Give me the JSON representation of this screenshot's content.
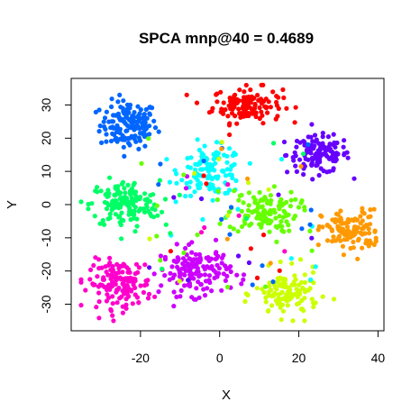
{
  "chart_data": {
    "type": "scatter",
    "title": "SPCA mnp@40 = 0.4689",
    "xlabel": "X",
    "ylabel": "Y",
    "xlim": [
      -37.5,
      41.5
    ],
    "ylim": [
      -38,
      38
    ],
    "xticks": [
      -20,
      0,
      20,
      40
    ],
    "yticks": [
      -30,
      -20,
      -10,
      0,
      10,
      20,
      30
    ],
    "grid": false,
    "legend": "none",
    "colors": [
      "#0066ff",
      "#ff0000",
      "#6600ff",
      "#00ffff",
      "#00ff66",
      "#66ff00",
      "#ff9900",
      "#ff00cc",
      "#cc00ff",
      "#ccff00"
    ],
    "clusters": [
      {
        "color": "#0066ff",
        "center": [
          -23,
          24
        ],
        "spread": [
          4.5,
          4.5
        ],
        "count": 150
      },
      {
        "color": "#ff0000",
        "center": [
          7,
          30
        ],
        "spread": [
          5.5,
          3.3
        ],
        "count": 130
      },
      {
        "color": "#6600ff",
        "center": [
          25,
          15
        ],
        "spread": [
          5.0,
          3.5
        ],
        "count": 130
      },
      {
        "color": "#00ffff",
        "center": [
          -2,
          10
        ],
        "spread": [
          5.0,
          4.5
        ],
        "count": 120
      },
      {
        "color": "#00ff66",
        "center": [
          -24,
          0
        ],
        "spread": [
          5.5,
          4.5
        ],
        "count": 160
      },
      {
        "color": "#66ff00",
        "center": [
          11,
          -2
        ],
        "spread": [
          5.5,
          4.0
        ],
        "count": 120
      },
      {
        "color": "#ff9900",
        "center": [
          33,
          -8
        ],
        "spread": [
          4.5,
          4.0
        ],
        "count": 120
      },
      {
        "color": "#ff00cc",
        "center": [
          -25,
          -24
        ],
        "spread": [
          5.0,
          4.5
        ],
        "count": 150
      },
      {
        "color": "#cc00ff",
        "center": [
          -6,
          -20
        ],
        "spread": [
          5.5,
          4.5
        ],
        "count": 150
      },
      {
        "color": "#ccff00",
        "center": [
          17,
          -27
        ],
        "spread": [
          5.0,
          4.5
        ],
        "count": 120
      }
    ],
    "scatter_noise_count": 80
  }
}
